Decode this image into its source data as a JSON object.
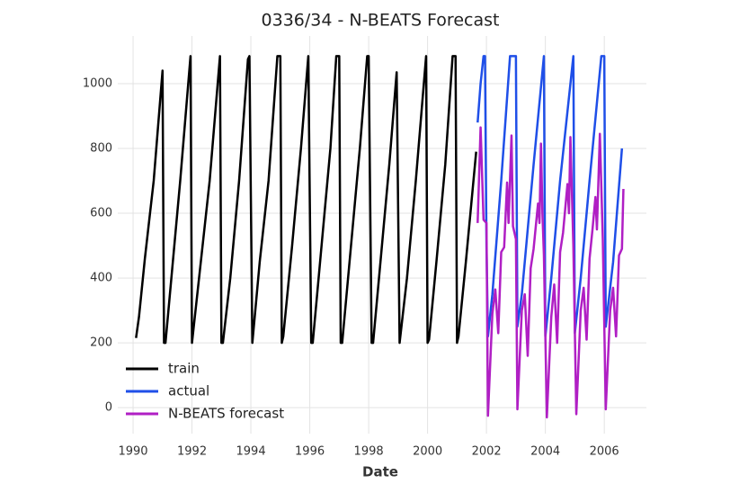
{
  "chart_data": {
    "type": "line",
    "title": "0336/34 - N-BEATS Forecast",
    "x_label": "Date",
    "xlim": [
      1989.48,
      2007.43
    ],
    "xticks": [
      1990,
      1992,
      1994,
      1996,
      1998,
      2000,
      2002,
      2004,
      2006
    ],
    "ylim": [
      -80,
      1147
    ],
    "yticks": [
      0,
      200,
      400,
      600,
      800,
      1000
    ],
    "grid": true,
    "legend": "lower left",
    "series": [
      {
        "name": "train",
        "color": "#000000",
        "x": [
          1990.1,
          1990.2,
          1990.4,
          1990.7,
          1991.0,
          1991.05,
          1991.1,
          1991.3,
          1991.6,
          1991.95,
          1992.0,
          1992.3,
          1992.6,
          1992.95,
          1993.0,
          1993.05,
          1993.3,
          1993.6,
          1993.9,
          1993.95,
          1994.05,
          1994.3,
          1994.6,
          1994.9,
          1995.0,
          1995.05,
          1995.1,
          1995.4,
          1995.7,
          1995.95,
          1996.05,
          1996.1,
          1996.4,
          1996.7,
          1996.9,
          1997.0,
          1997.05,
          1997.1,
          1997.4,
          1997.7,
          1997.95,
          1998.0,
          1998.1,
          1998.15,
          1998.4,
          1998.7,
          1998.95,
          1999.05,
          1999.3,
          1999.6,
          1999.95,
          2000.0,
          2000.05,
          2000.3,
          2000.6,
          2000.85,
          2000.95,
          2001.0,
          2001.05,
          2001.3,
          2001.65
        ],
        "values": [
          215,
          280,
          460,
          700,
          1040,
          200,
          200,
          400,
          700,
          1085,
          200,
          450,
          700,
          1085,
          200,
          200,
          400,
          700,
          1075,
          1085,
          200,
          450,
          700,
          1085,
          1085,
          200,
          220,
          500,
          800,
          1085,
          200,
          200,
          500,
          800,
          1085,
          1085,
          200,
          200,
          500,
          800,
          1085,
          1085,
          200,
          200,
          450,
          750,
          1035,
          200,
          400,
          700,
          1085,
          200,
          210,
          450,
          750,
          1085,
          1085,
          200,
          220,
          450,
          790
        ]
      },
      {
        "name": "actual",
        "color": "#1f4fe8",
        "x": [
          2001.7,
          2001.8,
          2001.9,
          2001.95,
          2002.0,
          2002.05,
          2002.2,
          2002.5,
          2002.8,
          2003.0,
          2003.05,
          2003.2,
          2003.6,
          2003.95,
          2004.0,
          2004.2,
          2004.5,
          2004.95,
          2005.0,
          2005.2,
          2005.5,
          2005.9,
          2006.0,
          2006.05,
          2006.3,
          2006.6
        ],
        "values": [
          880,
          1000,
          1085,
          1085,
          500,
          220,
          350,
          700,
          1085,
          1085,
          250,
          350,
          750,
          1085,
          220,
          400,
          700,
          1085,
          230,
          400,
          700,
          1085,
          1085,
          250,
          450,
          800
        ]
      },
      {
        "name": "N-BEATS forecast",
        "color": "#b01fc4",
        "x": [
          2001.7,
          2001.8,
          2001.9,
          2002.0,
          2002.05,
          2002.2,
          2002.3,
          2002.4,
          2002.5,
          2002.6,
          2002.7,
          2002.75,
          2002.85,
          2002.9,
          2003.0,
          2003.05,
          2003.2,
          2003.3,
          2003.4,
          2003.5,
          2003.6,
          2003.75,
          2003.8,
          2003.85,
          2003.9,
          2003.95,
          2004.05,
          2004.2,
          2004.3,
          2004.4,
          2004.5,
          2004.6,
          2004.75,
          2004.8,
          2004.85,
          2004.95,
          2005.05,
          2005.2,
          2005.3,
          2005.4,
          2005.5,
          2005.6,
          2005.7,
          2005.75,
          2005.85,
          2005.95,
          2006.05,
          2006.2,
          2006.3,
          2006.4,
          2006.5,
          2006.6,
          2006.65
        ],
        "values": [
          570,
          865,
          580,
          570,
          -25,
          290,
          365,
          230,
          480,
          495,
          695,
          570,
          840,
          560,
          520,
          -5,
          300,
          350,
          160,
          430,
          490,
          630,
          570,
          815,
          600,
          470,
          -30,
          280,
          380,
          200,
          480,
          540,
          690,
          600,
          835,
          500,
          -20,
          300,
          370,
          210,
          460,
          550,
          650,
          550,
          845,
          520,
          -5,
          300,
          370,
          220,
          470,
          490,
          675
        ]
      }
    ]
  }
}
